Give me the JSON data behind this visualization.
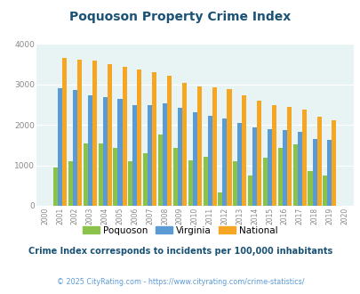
{
  "title": "Poquoson Property Crime Index",
  "years": [
    2000,
    2001,
    2002,
    2003,
    2004,
    2005,
    2006,
    2007,
    2008,
    2009,
    2010,
    2011,
    2012,
    2013,
    2014,
    2015,
    2016,
    2017,
    2018,
    2019,
    2020
  ],
  "poquoson": [
    0,
    950,
    1100,
    1550,
    1550,
    1430,
    1100,
    1310,
    1760,
    1430,
    1130,
    1220,
    320,
    1110,
    760,
    1200,
    1430,
    1530,
    870,
    760,
    0
  ],
  "virginia": [
    0,
    2900,
    2870,
    2730,
    2680,
    2650,
    2490,
    2490,
    2540,
    2430,
    2320,
    2220,
    2160,
    2060,
    1950,
    1900,
    1880,
    1820,
    1660,
    1640,
    0
  ],
  "national": [
    0,
    3660,
    3620,
    3600,
    3510,
    3430,
    3370,
    3300,
    3210,
    3040,
    2950,
    2930,
    2880,
    2730,
    2600,
    2500,
    2450,
    2390,
    2200,
    2110,
    0
  ],
  "poquoson_color": "#8bc34a",
  "virginia_color": "#5b9bd5",
  "national_color": "#f5a623",
  "bg_color": "#e8f4f4",
  "ylim": [
    0,
    4000
  ],
  "subtitle": "Crime Index corresponds to incidents per 100,000 inhabitants",
  "footer": "© 2025 CityRating.com - https://www.cityrating.com/crime-statistics/",
  "title_color": "#1a5276",
  "subtitle_color": "#1a5276",
  "footer_color": "#5b9bd5"
}
